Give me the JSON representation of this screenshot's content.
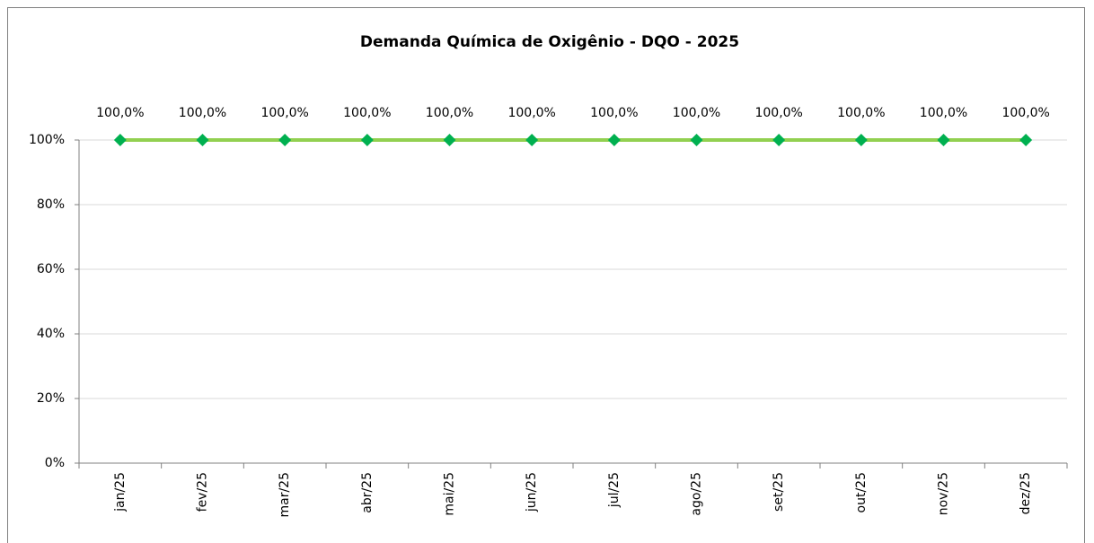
{
  "chart_data": {
    "type": "line",
    "title": "Demanda Química de Oxigênio - DQO - 2025",
    "categories": [
      "jan/25",
      "fev/25",
      "mar/25",
      "abr/25",
      "mai/25",
      "jun/25",
      "jul/25",
      "ago/25",
      "set/25",
      "out/25",
      "nov/25",
      "dez/25"
    ],
    "values": [
      100,
      100,
      100,
      100,
      100,
      100,
      100,
      100,
      100,
      100,
      100,
      100
    ],
    "value_labels": [
      "100,0%",
      "100,0%",
      "100,0%",
      "100,0%",
      "100,0%",
      "100,0%",
      "100,0%",
      "100,0%",
      "100,0%",
      "100,0%",
      "100,0%",
      "100,0%"
    ],
    "color": "#92d050",
    "marker_color": "#00b050",
    "ylim": [
      0,
      100
    ],
    "yticks": [
      {
        "value": 0,
        "label": "0%"
      },
      {
        "value": 20,
        "label": "20%"
      },
      {
        "value": 40,
        "label": "40%"
      },
      {
        "value": 60,
        "label": "60%"
      },
      {
        "value": 80,
        "label": "80%"
      },
      {
        "value": 100,
        "label": "100%"
      }
    ],
    "grid": true
  }
}
